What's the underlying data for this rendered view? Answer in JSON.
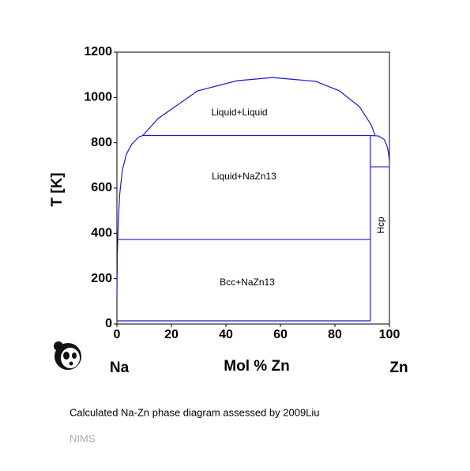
{
  "chart_data": {
    "type": "line",
    "x_label": "Mol % Zn",
    "y_label": "T [K]",
    "end_labels": [
      "Na",
      "Zn"
    ],
    "caption": "Calculated Na-Zn phase diagram assessed by 2009Liu",
    "source": "NIMS",
    "xlim": [
      0,
      100
    ],
    "ylim": [
      0,
      1200
    ],
    "xticks": [
      0,
      20,
      40,
      60,
      80,
      100
    ],
    "yticks": [
      0,
      200,
      400,
      600,
      800,
      1000,
      1200
    ],
    "color": "#1a1acc",
    "annotations": [
      "Liquid+Liquid",
      "Liquid+NaZn13",
      "Bcc+NaZn13",
      "Hcp"
    ],
    "series": [
      {
        "x": [
          0,
          0.15,
          0.5,
          1,
          2,
          3.5,
          5.5,
          8,
          9.5,
          15.1,
          29.6,
          44.1,
          57.1,
          73,
          81.7,
          89,
          93.3,
          94.8
        ],
        "values": [
          122,
          300,
          450,
          570,
          680,
          750,
          795,
          825,
          832,
          907,
          1029,
          1074,
          1088,
          1071,
          1029,
          959,
          879,
          830
        ]
      },
      {
        "x": [
          9.5,
          93
        ],
        "values": [
          832,
          832
        ]
      },
      {
        "x": [
          0,
          93
        ],
        "values": [
          373,
          373
        ]
      },
      {
        "x": [
          0,
          93
        ],
        "values": [
          14,
          14
        ]
      },
      {
        "x": [
          93,
          93
        ],
        "values": [
          14,
          832
        ]
      },
      {
        "x": [
          93,
          100
        ],
        "values": [
          694,
          694
        ]
      },
      {
        "x": [
          93,
          96,
          98,
          99,
          99.6,
          100
        ],
        "values": [
          832,
          830,
          815,
          790,
          760,
          720
        ]
      }
    ]
  }
}
